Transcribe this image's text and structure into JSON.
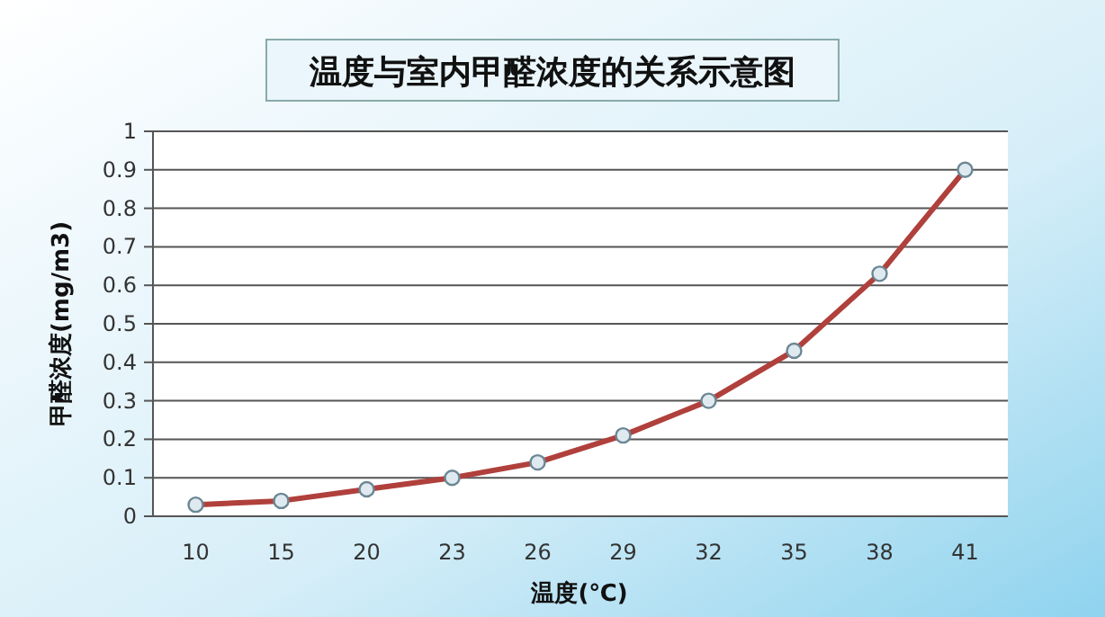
{
  "chart_data": {
    "type": "line",
    "title": "温度与室内甲醛浓度的关系示意图",
    "xlabel": "温度(℃)",
    "ylabel": "甲醛浓度(mg/m3)",
    "categories": [
      "10",
      "15",
      "20",
      "23",
      "26",
      "29",
      "32",
      "35",
      "38",
      "41"
    ],
    "series": [
      {
        "color": "#b0403c",
        "values": [
          0.03,
          0.04,
          0.07,
          0.1,
          0.14,
          0.21,
          0.3,
          0.43,
          0.63,
          0.9
        ]
      }
    ],
    "ylim": [
      0,
      1
    ],
    "yticks": [
      0,
      0.1,
      0.2,
      0.3,
      0.4,
      0.5,
      0.6,
      0.7,
      0.8,
      0.9,
      1
    ],
    "grid": "y",
    "marker": "circle",
    "line_style": "solid"
  }
}
